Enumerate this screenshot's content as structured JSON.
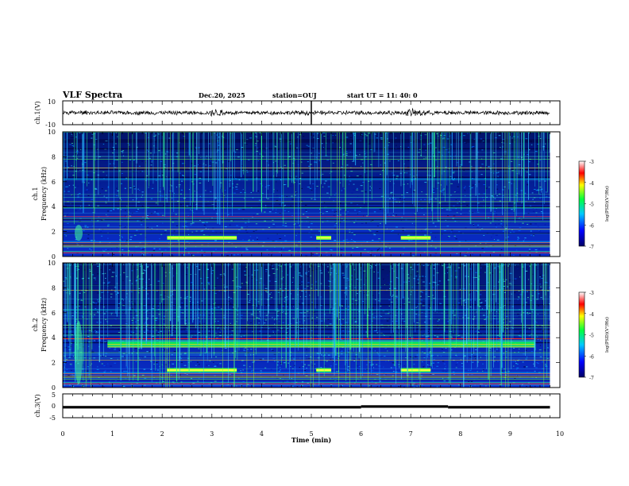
{
  "header": {
    "title": "VLF Spectra",
    "date": "Dec.20, 2025",
    "station": "station=OUJ",
    "start": "start  UT =   11: 40: 0"
  },
  "chart_data": [
    {
      "type": "line",
      "name": "ch1-waveform",
      "ylabel": "ch.1(V)",
      "ylim": [
        -10,
        10
      ],
      "ytick_labels": [
        "10",
        "-10"
      ],
      "xlim": [
        0,
        10
      ],
      "note_values": {
        "approx_amplitude_V": 1.5,
        "spikes_min": [
          5.0
        ]
      }
    },
    {
      "type": "heatmap",
      "name": "ch1-spectrogram",
      "ylabel": "ch.1\nFrequency  (kHz)",
      "ylim": [
        0,
        10
      ],
      "yticks": [
        0,
        2,
        4,
        6,
        8,
        10
      ],
      "xlim": [
        0,
        10
      ],
      "data_extent_min": [
        0,
        9.8
      ],
      "colorbar": {
        "label": "log(PSD)(V²/Hz)",
        "range": [
          -7,
          -3
        ],
        "ticks": [
          -3,
          -4,
          -5,
          -6,
          -7
        ]
      },
      "features": {
        "persistent_lines_kHz": [
          0.4,
          0.8,
          1.2,
          2.2,
          2.8,
          3.2,
          3.9,
          4.4,
          6.2,
          7.1,
          7.8
        ],
        "green_band_kHz": 1.5,
        "green_band_intervals_min": [
          [
            2.1,
            3.5
          ],
          [
            5.1,
            5.4
          ],
          [
            6.8,
            7.4
          ]
        ]
      }
    },
    {
      "type": "heatmap",
      "name": "ch2-spectrogram",
      "ylabel": "ch.2\nFrequency  (kHz)",
      "ylim": [
        0,
        10
      ],
      "yticks": [
        0,
        2,
        4,
        6,
        8,
        10
      ],
      "xlim": [
        0,
        10
      ],
      "data_extent_min": [
        0,
        9.8
      ],
      "colorbar": {
        "label": "log(PSD)(V²/Hz)",
        "range": [
          -7,
          -3
        ],
        "ticks": [
          -3,
          -4,
          -5,
          -6,
          -7
        ]
      },
      "features": {
        "persistent_lines_kHz": [
          0.4,
          0.8,
          1.2,
          2.2,
          2.8,
          3.9,
          4.2,
          5.0,
          6.2,
          7.8
        ],
        "green_band_kHz": 1.4,
        "green_band_intervals_min": [
          [
            2.1,
            3.5
          ],
          [
            5.1,
            5.4
          ],
          [
            6.8,
            7.4
          ]
        ],
        "wide_band_kHz": [
          3.2,
          3.8
        ],
        "wide_band_interval_min": [
          0.9,
          9.5
        ]
      }
    },
    {
      "type": "line",
      "name": "ch3-signal",
      "ylabel": "ch.3(V)",
      "ylim": [
        -5,
        5
      ],
      "ytick_labels": [
        "5",
        "0",
        "-5"
      ],
      "xlim": [
        0,
        10
      ],
      "segments": [
        {
          "x": [
            0,
            6.0
          ],
          "y": -0.6
        },
        {
          "x": [
            6.0,
            7.75
          ],
          "y": -0.3
        },
        {
          "x": [
            7.75,
            9.8
          ],
          "y": -0.6
        }
      ],
      "xlabel": "Time  (min)",
      "xticks": [
        0,
        1,
        2,
        3,
        4,
        5,
        6,
        7,
        8,
        9,
        10
      ]
    }
  ]
}
